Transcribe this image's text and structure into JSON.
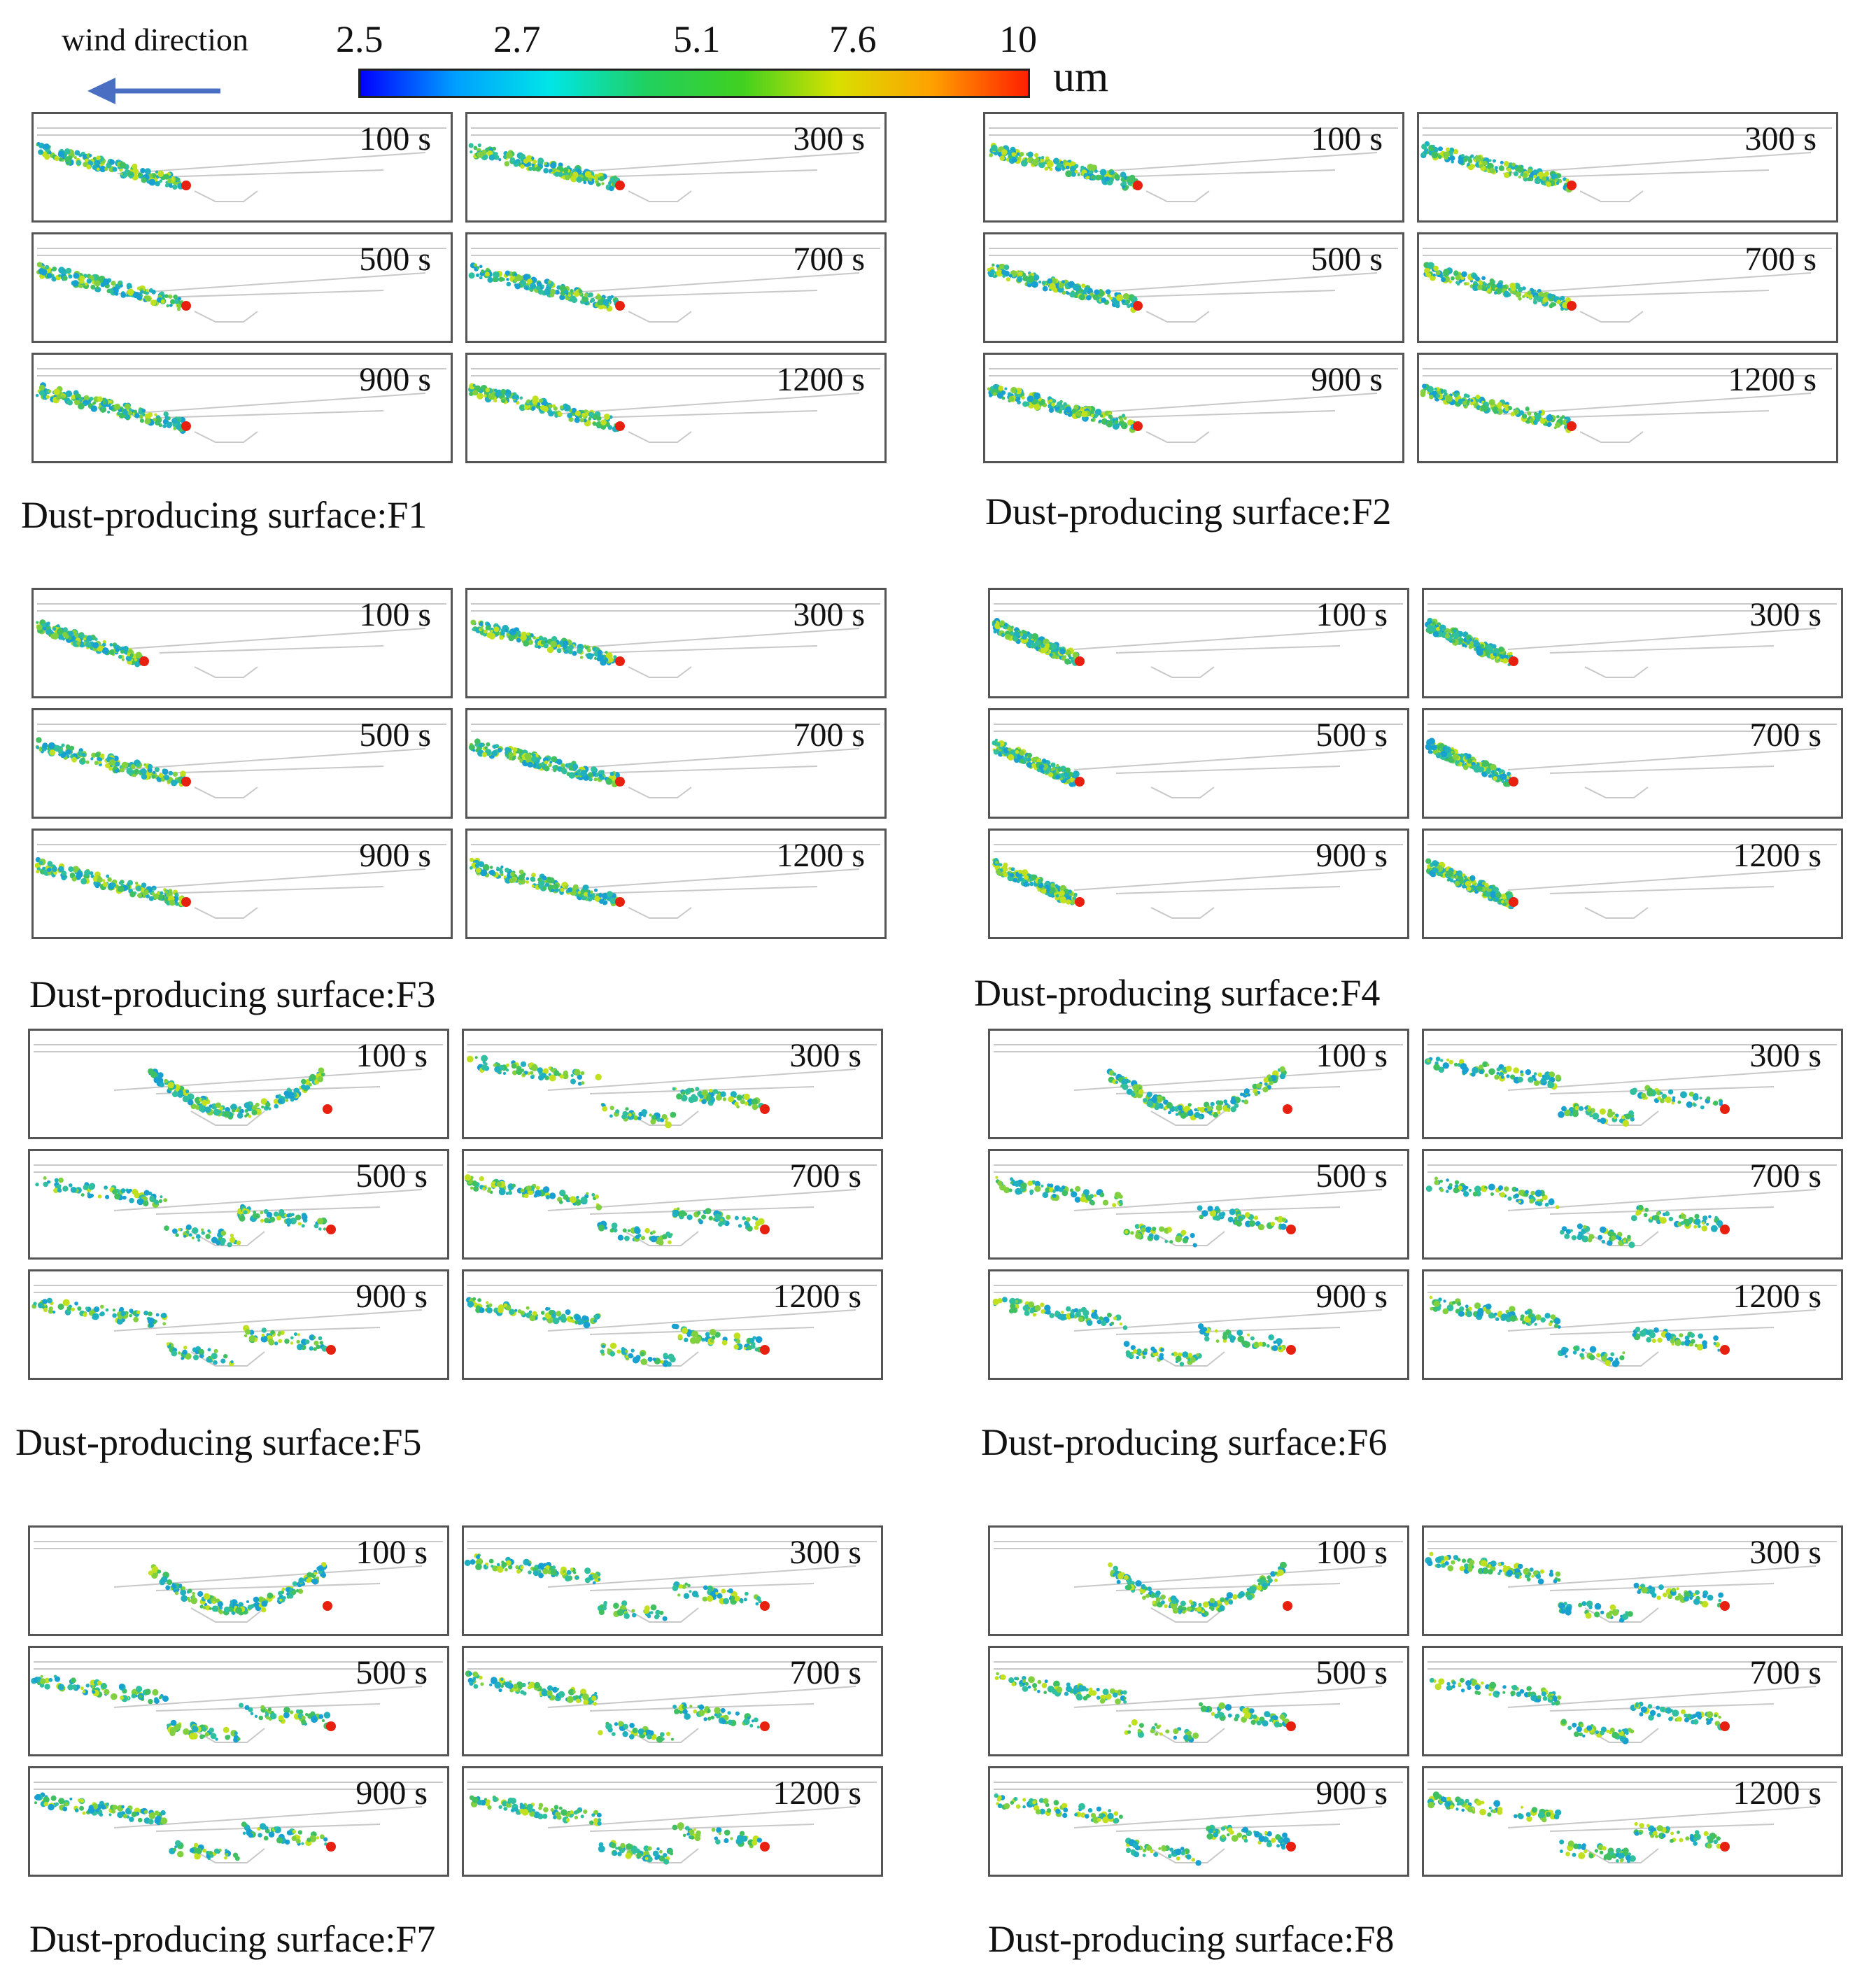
{
  "legend": {
    "wind_label": "wind direction",
    "colorbar_ticks": [
      "2.5",
      "2.7",
      "5.1",
      "7.6",
      "10"
    ],
    "unit": "um",
    "colors": [
      "#0000ff",
      "#00a0ff",
      "#00e6e6",
      "#20d060",
      "#40d020",
      "#d8e000",
      "#ffa000",
      "#ff2000"
    ]
  },
  "times": [
    "100 s",
    "300 s",
    "500 s",
    "700 s",
    "900 s",
    "1200 s"
  ],
  "groups": [
    {
      "caption": "Dust-producing surface:F1",
      "source": "F1"
    },
    {
      "caption": "Dust-producing surface:F2",
      "source": "F2"
    },
    {
      "caption": "Dust-producing surface:F3",
      "source": "F3"
    },
    {
      "caption": "Dust-producing surface:F4",
      "source": "F4"
    },
    {
      "caption": "Dust-producing surface:F5",
      "source": "F5"
    },
    {
      "caption": "Dust-producing surface:F6",
      "source": "F6"
    },
    {
      "caption": "Dust-producing surface:F7",
      "source": "F7"
    },
    {
      "caption": "Dust-producing surface:F8",
      "source": "F8"
    }
  ]
}
